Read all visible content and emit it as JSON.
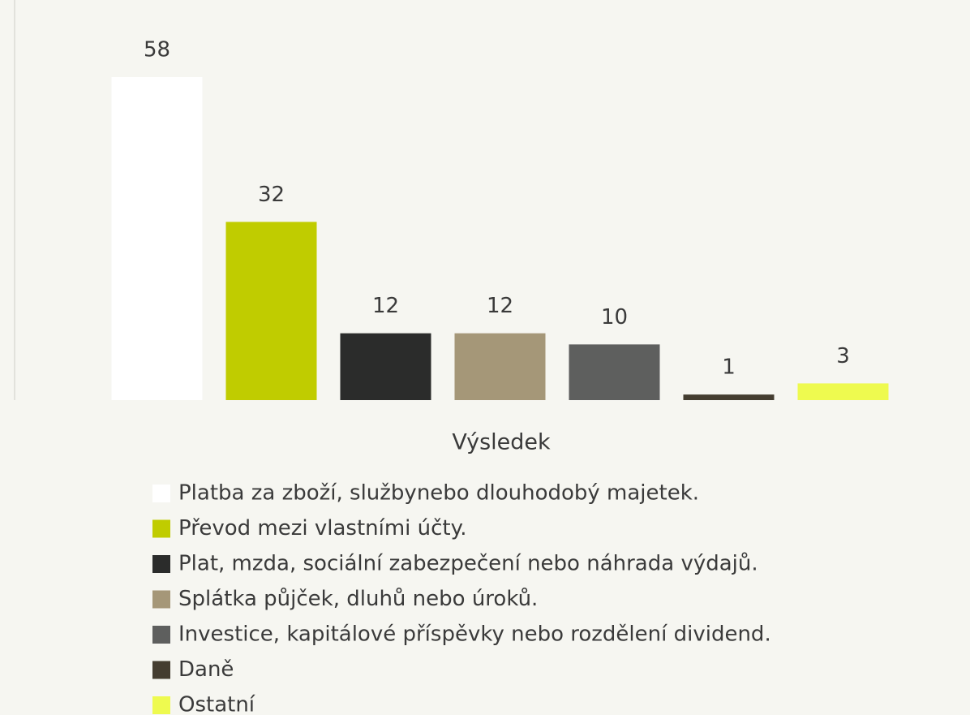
{
  "chart_data": {
    "type": "bar",
    "x_label": "Výsledek",
    "categories": [
      "Platba za zboží, službynebo dlouhodobý majetek.",
      "Převod mezi vlastními účty.",
      "Plat, mzda, sociální zabezpečení nebo náhrada výdajů.",
      "Splátka půjček, dluhů nebo úroků.",
      "Investice, kapitálové příspěvky nebo rozdělení dividend.",
      "Daně",
      "Ostatní"
    ],
    "values": [
      58,
      32,
      12,
      12,
      10,
      1,
      3
    ],
    "colors": [
      "#ffffff",
      "#c0cc00",
      "#2b2c2b",
      "#a59778",
      "#5e5f5e",
      "#443d30",
      "#eefa4f"
    ],
    "ylim": [
      0,
      58
    ]
  }
}
